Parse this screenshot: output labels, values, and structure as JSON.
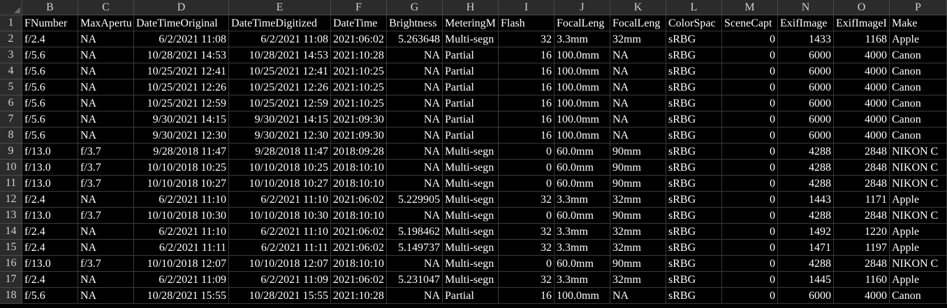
{
  "column_letters": [
    "B",
    "C",
    "D",
    "E",
    "F",
    "G",
    "H",
    "I",
    "J",
    "K",
    "L",
    "M",
    "N",
    "O",
    "P"
  ],
  "row_numbers": [
    "1",
    "2",
    "3",
    "4",
    "5",
    "6",
    "7",
    "8",
    "9",
    "10",
    "11",
    "12",
    "13",
    "14",
    "15",
    "16",
    "17",
    "18"
  ],
  "rows": [
    [
      "FNumber",
      "MaxApertu",
      "DateTimeOriginal",
      "DateTimeDigitized",
      "DateTime",
      "Brightness",
      "MeteringM",
      "Flash",
      "FocalLeng",
      "FocalLeng",
      "ColorSpac",
      "SceneCapt",
      "ExifImage",
      "ExifImageI",
      "Make"
    ],
    [
      "f/2.4",
      "NA",
      "6/2/2021 11:08",
      "6/2/2021 11:08",
      "2021:06:02",
      "5.263648",
      "Multi-segn",
      "32",
      "3.3mm",
      "32mm",
      "sRBG",
      "0",
      "1433",
      "1168",
      "Apple"
    ],
    [
      "f/5.6",
      "NA",
      "10/28/2021 14:53",
      "10/28/2021 14:53",
      "2021:10:28",
      "NA",
      "Partial",
      "16",
      "100.0mm",
      "NA",
      "sRBG",
      "0",
      "6000",
      "4000",
      "Canon"
    ],
    [
      "f/5.6",
      "NA",
      "10/25/2021 12:41",
      "10/25/2021 12:41",
      "2021:10:25",
      "NA",
      "Partial",
      "16",
      "100.0mm",
      "NA",
      "sRBG",
      "0",
      "6000",
      "4000",
      "Canon"
    ],
    [
      "f/5.6",
      "NA",
      "10/25/2021 12:26",
      "10/25/2021 12:26",
      "2021:10:25",
      "NA",
      "Partial",
      "16",
      "100.0mm",
      "NA",
      "sRBG",
      "0",
      "6000",
      "4000",
      "Canon"
    ],
    [
      "f/5.6",
      "NA",
      "10/25/2021 12:59",
      "10/25/2021 12:59",
      "2021:10:25",
      "NA",
      "Partial",
      "16",
      "100.0mm",
      "NA",
      "sRBG",
      "0",
      "6000",
      "4000",
      "Canon"
    ],
    [
      "f/5.6",
      "NA",
      "9/30/2021 14:15",
      "9/30/2021 14:15",
      "2021:09:30",
      "NA",
      "Partial",
      "16",
      "100.0mm",
      "NA",
      "sRBG",
      "0",
      "6000",
      "4000",
      "Canon"
    ],
    [
      "f/5.6",
      "NA",
      "9/30/2021 12:30",
      "9/30/2021 12:30",
      "2021:09:30",
      "NA",
      "Partial",
      "16",
      "100.0mm",
      "NA",
      "sRBG",
      "0",
      "6000",
      "4000",
      "Canon"
    ],
    [
      "f/13.0",
      "f/3.7",
      "9/28/2018 11:47",
      "9/28/2018 11:47",
      "2018:09:28",
      "NA",
      "Multi-segn",
      "0",
      "60.0mm",
      "90mm",
      "sRBG",
      "0",
      "4288",
      "2848",
      "NIKON C"
    ],
    [
      "f/13.0",
      "f/3.7",
      "10/10/2018 10:25",
      "10/10/2018 10:25",
      "2018:10:10",
      "NA",
      "Multi-segn",
      "0",
      "60.0mm",
      "90mm",
      "sRBG",
      "0",
      "4288",
      "2848",
      "NIKON C"
    ],
    [
      "f/13.0",
      "f/3.7",
      "10/10/2018 10:27",
      "10/10/2018 10:27",
      "2018:10:10",
      "NA",
      "Multi-segn",
      "0",
      "60.0mm",
      "90mm",
      "sRBG",
      "0",
      "4288",
      "2848",
      "NIKON C"
    ],
    [
      "f/2.4",
      "NA",
      "6/2/2021 11:10",
      "6/2/2021 11:10",
      "2021:06:02",
      "5.229905",
      "Multi-segn",
      "32",
      "3.3mm",
      "32mm",
      "sRBG",
      "0",
      "1443",
      "1171",
      "Apple"
    ],
    [
      "f/13.0",
      "f/3.7",
      "10/10/2018 10:30",
      "10/10/2018 10:30",
      "2018:10:10",
      "NA",
      "Multi-segn",
      "0",
      "60.0mm",
      "90mm",
      "sRBG",
      "0",
      "4288",
      "2848",
      "NIKON C"
    ],
    [
      "f/2.4",
      "NA",
      "6/2/2021 11:10",
      "6/2/2021 11:10",
      "2021:06:02",
      "5.198462",
      "Multi-segn",
      "32",
      "3.3mm",
      "32mm",
      "sRBG",
      "0",
      "1492",
      "1220",
      "Apple"
    ],
    [
      "f/2.4",
      "NA",
      "6/2/2021 11:11",
      "6/2/2021 11:11",
      "2021:06:02",
      "5.149737",
      "Multi-segn",
      "32",
      "3.3mm",
      "32mm",
      "sRBG",
      "0",
      "1471",
      "1197",
      "Apple"
    ],
    [
      "f/13.0",
      "f/3.7",
      "10/10/2018 12:07",
      "10/10/2018 12:07",
      "2018:10:10",
      "NA",
      "Multi-segn",
      "0",
      "60.0mm",
      "90mm",
      "sRBG",
      "0",
      "4288",
      "2848",
      "NIKON C"
    ],
    [
      "f/2.4",
      "NA",
      "6/2/2021 11:09",
      "6/2/2021 11:09",
      "2021:06:02",
      "5.231047",
      "Multi-segn",
      "32",
      "3.3mm",
      "32mm",
      "sRBG",
      "0",
      "1445",
      "1160",
      "Apple"
    ],
    [
      "f/5.6",
      "NA",
      "10/28/2021 15:55",
      "10/28/2021 15:55",
      "2021:10:28",
      "NA",
      "Partial",
      "16",
      "100.0mm",
      "NA",
      "sRBG",
      "0",
      "6000",
      "4000",
      "Canon"
    ]
  ]
}
